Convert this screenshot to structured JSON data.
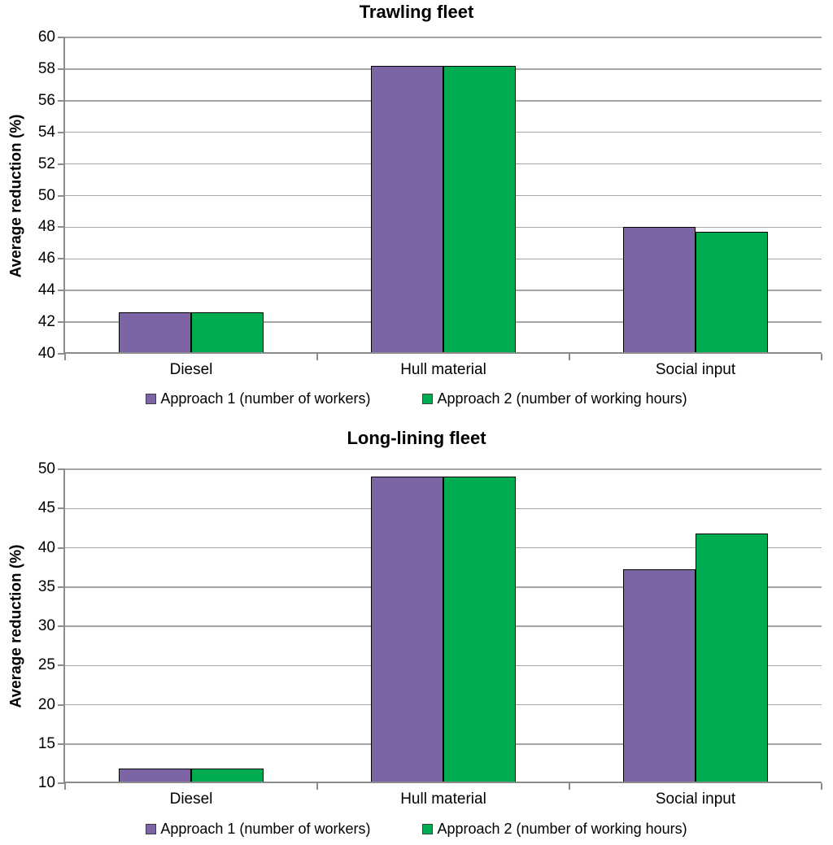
{
  "page": {
    "background": "#ffffff"
  },
  "chart_data": [
    {
      "type": "bar",
      "title": "Trawling fleet",
      "ylabel": "Average reduction (%)",
      "categories": [
        "Diesel",
        "Hull material",
        "Social input"
      ],
      "series": [
        {
          "name": "Approach 1 (number of workers)",
          "color": "#7C64A5",
          "values": [
            42.6,
            58.2,
            48.0
          ]
        },
        {
          "name": "Approach 2 (number of working hours)",
          "color": "#00AC50",
          "values": [
            42.6,
            58.2,
            47.7
          ]
        }
      ],
      "ylim": [
        40,
        60
      ],
      "ytick_step": 2,
      "grid": true,
      "legend_position": "bottom",
      "grid_color": "#A6A6A6",
      "axis_color": "#8C8C8C",
      "bar_border_color": "#000000"
    },
    {
      "type": "bar",
      "title": "Long-lining fleet",
      "ylabel": "Average reduction (%)",
      "categories": [
        "Diesel",
        "Hull material",
        "Social input"
      ],
      "series": [
        {
          "name": "Approach 1 (number of workers)",
          "color": "#7C64A5",
          "values": [
            11.9,
            49.1,
            37.3
          ]
        },
        {
          "name": "Approach 2 (number of working hours)",
          "color": "#00AC50",
          "values": [
            11.9,
            49.1,
            41.8
          ]
        }
      ],
      "ylim": [
        10,
        50
      ],
      "ytick_step": 5,
      "grid": true,
      "legend_position": "bottom",
      "grid_color": "#A6A6A6",
      "axis_color": "#8C8C8C",
      "bar_border_color": "#000000"
    }
  ]
}
